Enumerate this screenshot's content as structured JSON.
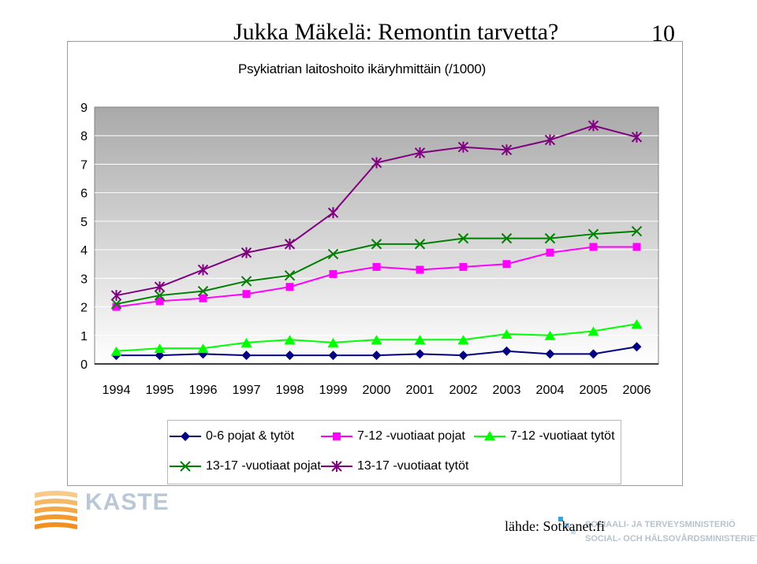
{
  "slide": {
    "title": "Jukka Mäkelä: Remontin tarvetta?",
    "number": "10",
    "source": "lähde: Sotkanet.fi"
  },
  "logos": {
    "kaste": "KASTE",
    "ministry_line1": "SOSIAALI- JA TERVEYSMINISTERIÖ",
    "ministry_line2": "SOCIAL- OCH HÄLSOVÅRDSMINISTERIET"
  },
  "colors": {
    "plot_top": "#a9a9a9",
    "plot_bottom": "#ffffff",
    "navy": "#000080",
    "magenta": "#ff00ff",
    "green": "#00ff00",
    "dark_green": "#008000",
    "purple": "#800080"
  },
  "chart_data": {
    "type": "line",
    "title": "Psykiatrian laitoshoito ikäryhmittäin (/1000)",
    "xlabel": "",
    "ylabel": "",
    "ylim": [
      0,
      9
    ],
    "yticks": [
      "0",
      "1",
      "2",
      "3",
      "4",
      "5",
      "6",
      "7",
      "8",
      "9"
    ],
    "grid": true,
    "legend_position": "bottom",
    "categories": [
      "1994",
      "1995",
      "1996",
      "1997",
      "1998",
      "1999",
      "2000",
      "2001",
      "2002",
      "2003",
      "2004",
      "2005",
      "2006"
    ],
    "series": [
      {
        "name": "0-6 pojat & tytöt",
        "marker": "diamond",
        "color": "#000080",
        "values": [
          0.3,
          0.3,
          0.35,
          0.3,
          0.3,
          0.3,
          0.3,
          0.35,
          0.3,
          0.45,
          0.35,
          0.35,
          0.6
        ]
      },
      {
        "name": "7-12 -vuotiaat pojat",
        "marker": "square",
        "color": "#ff00ff",
        "values": [
          2.0,
          2.2,
          2.3,
          2.45,
          2.7,
          3.15,
          3.4,
          3.3,
          3.4,
          3.5,
          3.9,
          4.1,
          4.1
        ]
      },
      {
        "name": "7-12 -vuotiaat tytöt",
        "marker": "triangle",
        "color": "#00ff00",
        "values": [
          0.45,
          0.55,
          0.55,
          0.75,
          0.85,
          0.75,
          0.85,
          0.85,
          0.85,
          1.05,
          1.0,
          1.15,
          1.4
        ]
      },
      {
        "name": "13-17 -vuotiaat pojat",
        "marker": "x",
        "color": "#008000",
        "values": [
          2.1,
          2.4,
          2.55,
          2.9,
          3.1,
          3.85,
          4.2,
          4.2,
          4.4,
          4.4,
          4.4,
          4.55,
          4.65
        ]
      },
      {
        "name": "13-17 -vuotiaat tytöt",
        "marker": "star",
        "color": "#800080",
        "values": [
          2.4,
          2.7,
          3.3,
          3.9,
          4.2,
          5.3,
          7.05,
          7.4,
          7.6,
          7.5,
          7.85,
          8.35,
          7.95
        ]
      }
    ]
  }
}
